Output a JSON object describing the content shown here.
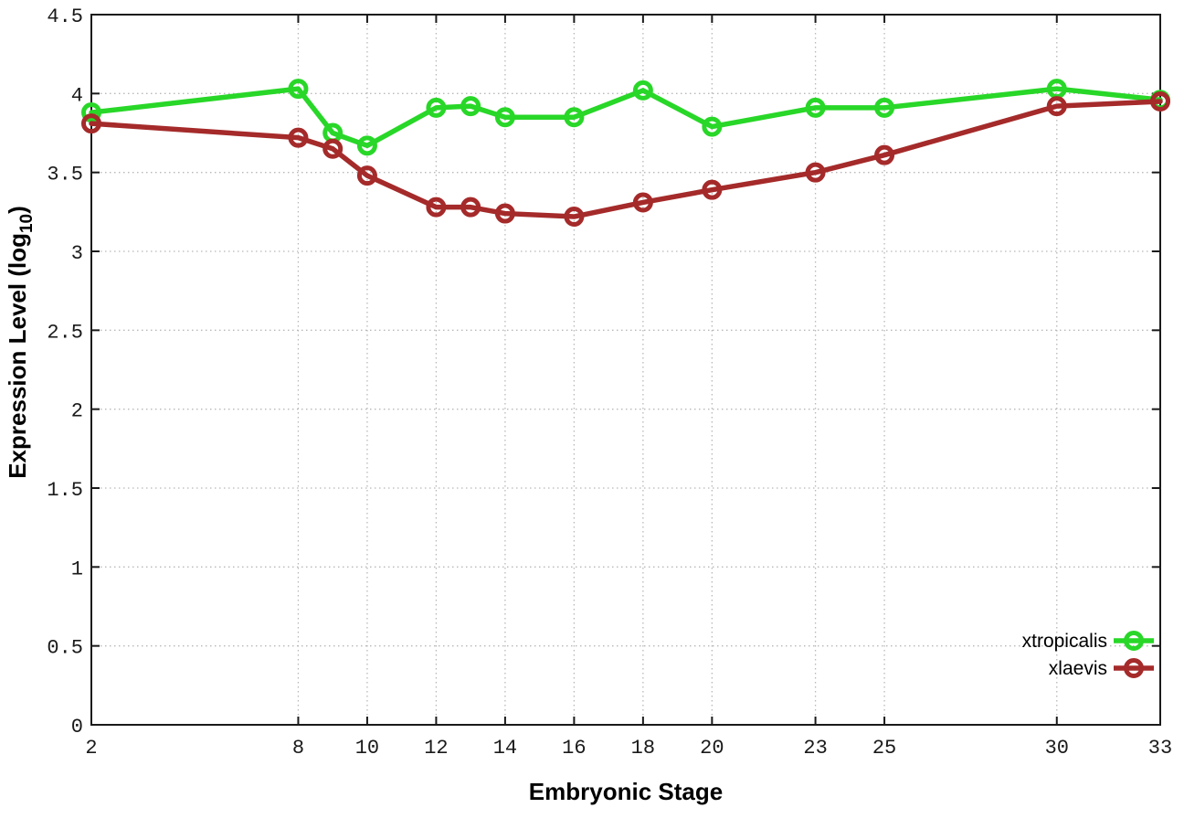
{
  "chart_data": {
    "type": "line",
    "title": "",
    "xlabel": "Embryonic Stage",
    "ylabel": "Expression Level (log10)",
    "ylabel_parts": {
      "main": "Expression Level (log",
      "sub": "10",
      "end": ")"
    },
    "xlim": [
      2,
      33
    ],
    "ylim": [
      0,
      4.5
    ],
    "grid": true,
    "legend_position": "bottom-right",
    "x_ticks": [
      2,
      8,
      10,
      12,
      14,
      16,
      18,
      20,
      23,
      25,
      30,
      33
    ],
    "x_tick_labels": [
      "2",
      "8",
      "10",
      "12",
      "14",
      "16",
      "18",
      "20",
      "23",
      "25",
      "30",
      "33"
    ],
    "y_ticks": [
      0,
      0.5,
      1,
      1.5,
      2,
      2.5,
      3,
      3.5,
      4,
      4.5
    ],
    "y_tick_labels": [
      "0",
      "0.5",
      "1",
      "1.5",
      "2",
      "2.5",
      "3",
      "3.5",
      "4",
      "4.5"
    ],
    "x": [
      2,
      8,
      9,
      10,
      12,
      13,
      14,
      16,
      18,
      20,
      23,
      25,
      30,
      33
    ],
    "series": [
      {
        "name": "xtropicalis",
        "color": "#28d728",
        "marker": "open-circle",
        "values": [
          3.88,
          4.03,
          3.75,
          3.67,
          3.91,
          3.92,
          3.85,
          3.85,
          4.02,
          3.79,
          3.91,
          3.91,
          4.03,
          3.96
        ]
      },
      {
        "name": "xlaevis",
        "color": "#a52a2a",
        "marker": "open-circle",
        "values": [
          3.81,
          3.72,
          3.65,
          3.48,
          3.28,
          3.28,
          3.24,
          3.22,
          3.31,
          3.39,
          3.5,
          3.61,
          3.92,
          3.95
        ]
      }
    ]
  },
  "colors": {
    "xtropicalis": "#28d728",
    "xlaevis": "#a52a2a",
    "axis": "#1a1a1a",
    "grid": "#b8b8b8",
    "background": "#ffffff"
  }
}
